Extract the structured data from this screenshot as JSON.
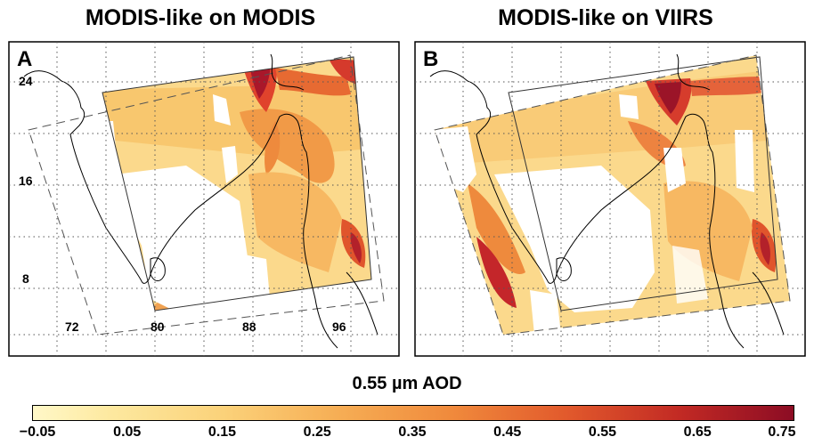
{
  "panels": [
    {
      "letter": "A",
      "title": "MODIS-like on MODIS"
    },
    {
      "letter": "B",
      "title": "MODIS-like on VIIRS"
    }
  ],
  "lat_labels": [
    "24",
    "16",
    "8"
  ],
  "lon_labels": [
    "72",
    "80",
    "88",
    "96"
  ],
  "colorbar": {
    "title": "0.55 µm AOD",
    "ticks": [
      "−0.05",
      "0.05",
      "0.15",
      "0.25",
      "0.35",
      "0.45",
      "0.55",
      "0.65",
      "0.75"
    ],
    "colors": [
      "#fff8c8",
      "#fde9a0",
      "#fbd27a",
      "#f6ae55",
      "#f08a3c",
      "#e25a2c",
      "#c22a24",
      "#8c0c24"
    ]
  }
}
